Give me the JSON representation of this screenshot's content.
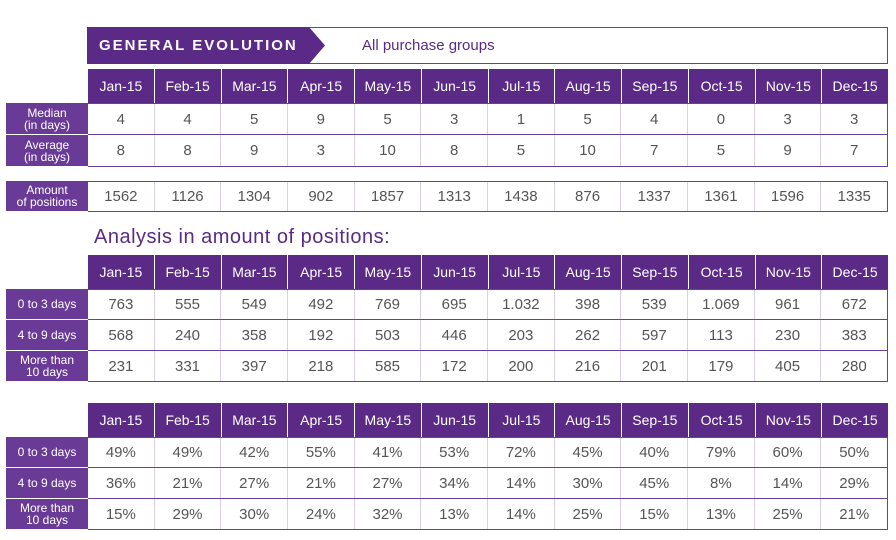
{
  "banner": {
    "title": "GENERAL EVOLUTION",
    "subtitle": "All purchase groups"
  },
  "months": [
    "Jan-15",
    "Feb-15",
    "Mar-15",
    "Apr-15",
    "May-15",
    "Jun-15",
    "Jul-15",
    "Aug-15",
    "Sep-15",
    "Oct-15",
    "Nov-15",
    "Dec-15"
  ],
  "general": {
    "median": {
      "label_line1": "Median",
      "label_line2": "(in days)",
      "values": [
        "4",
        "4",
        "5",
        "9",
        "5",
        "3",
        "1",
        "5",
        "4",
        "0",
        "3",
        "3"
      ]
    },
    "average": {
      "label_line1": "Average",
      "label_line2": "(in days)",
      "values": [
        "8",
        "8",
        "9",
        "3",
        "10",
        "8",
        "5",
        "10",
        "7",
        "5",
        "9",
        "7"
      ]
    },
    "amount": {
      "label_line1": "Amount",
      "label_line2": "of positions",
      "values": [
        "1562",
        "1126",
        "1304",
        "902",
        "1857",
        "1313",
        "1438",
        "876",
        "1337",
        "1361",
        "1596",
        "1335"
      ]
    }
  },
  "analysis_title": "Analysis in amount of positions:",
  "counts": [
    {
      "label_line1": "0 to 3 days",
      "label_line2": "",
      "values": [
        "763",
        "555",
        "549",
        "492",
        "769",
        "695",
        "1.032",
        "398",
        "539",
        "1.069",
        "961",
        "672"
      ]
    },
    {
      "label_line1": "4 to 9 days",
      "label_line2": "",
      "values": [
        "568",
        "240",
        "358",
        "192",
        "503",
        "446",
        "203",
        "262",
        "597",
        "113",
        "230",
        "383"
      ]
    },
    {
      "label_line1": "More than",
      "label_line2": "10 days",
      "values": [
        "231",
        "331",
        "397",
        "218",
        "585",
        "172",
        "200",
        "216",
        "201",
        "179",
        "405",
        "280"
      ]
    }
  ],
  "percents": [
    {
      "label_line1": "0 to 3 days",
      "label_line2": "",
      "values": [
        "49%",
        "49%",
        "42%",
        "55%",
        "41%",
        "53%",
        "72%",
        "45%",
        "40%",
        "79%",
        "60%",
        "50%"
      ]
    },
    {
      "label_line1": "4 to 9 days",
      "label_line2": "",
      "values": [
        "36%",
        "21%",
        "27%",
        "21%",
        "27%",
        "34%",
        "14%",
        "30%",
        "45%",
        "8%",
        "14%",
        "29%"
      ]
    },
    {
      "label_line1": "More than",
      "label_line2": "10 days",
      "values": [
        "15%",
        "29%",
        "30%",
        "24%",
        "32%",
        "13%",
        "14%",
        "25%",
        "15%",
        "13%",
        "25%",
        "21%"
      ]
    }
  ]
}
